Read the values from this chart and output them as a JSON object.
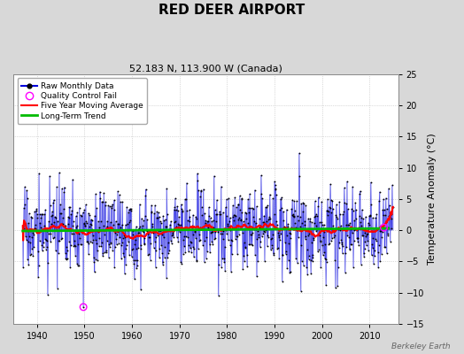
{
  "title": "RED DEER AIRPORT",
  "subtitle": "52.183 N, 113.900 W (Canada)",
  "ylabel": "Temperature Anomaly (°C)",
  "watermark": "Berkeley Earth",
  "xlim": [
    1935,
    2016
  ],
  "ylim": [
    -15,
    25
  ],
  "yticks": [
    -15,
    -10,
    -5,
    0,
    5,
    10,
    15,
    20,
    25
  ],
  "xticks": [
    1940,
    1950,
    1960,
    1970,
    1980,
    1990,
    2000,
    2010
  ],
  "year_start": 1937,
  "year_end": 2014,
  "seed": 42,
  "bg_color": "#d8d8d8",
  "plot_bg_color": "#ffffff",
  "line_color_raw": "#0000dd",
  "line_color_moving": "#ff0000",
  "line_color_trend": "#00bb00",
  "qc_fail_color": "#ff00ff",
  "dot_color": "#000000",
  "legend_labels": [
    "Raw Monthly Data",
    "Quality Control Fail",
    "Five Year Moving Average",
    "Long-Term Trend"
  ],
  "title_fontsize": 11,
  "subtitle_fontsize": 8,
  "tick_fontsize": 7,
  "ylabel_fontsize": 8
}
